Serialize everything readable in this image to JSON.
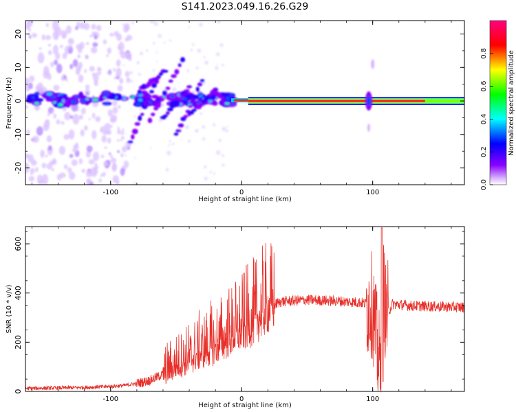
{
  "title": "S141.2023.049.16.26.G29",
  "chart_data": [
    {
      "type": "heatmap",
      "xlabel": "Height of straight line (km)",
      "ylabel": "Frequency (Hz)",
      "xlim": [
        -165,
        170
      ],
      "ylim": [
        -25,
        24
      ],
      "x_ticks": [
        -100,
        0,
        100
      ],
      "y_ticks": [
        -20,
        -10,
        0,
        10,
        20
      ],
      "grid": false,
      "colorbar": {
        "label": "Normalized spectral amplitude",
        "range": [
          0,
          1
        ],
        "ticks": [
          0.0,
          0.2,
          0.4,
          0.6,
          0.8
        ],
        "stops": [
          "#ffffff",
          "#8a00ff",
          "#0000ff",
          "#00ffff",
          "#00ff00",
          "#ffff00",
          "#ff0000",
          "#ff007f"
        ]
      },
      "features": [
        {
          "x_range": [
            -165,
            -95
          ],
          "frequency_hz": 1,
          "amplitude": 0.35
        },
        {
          "x_range": [
            -95,
            -5
          ],
          "frequency_hz": 1,
          "amplitude": 0.45
        },
        {
          "x_range": [
            5,
            170
          ],
          "frequency_hz": 0,
          "amplitude": 0.95
        },
        {
          "x_range": [
            92,
            102
          ],
          "frequency_hz": 0,
          "amplitude": 0.5
        }
      ]
    },
    {
      "type": "line",
      "xlabel": "Height of straight line (km)",
      "ylabel": "SNR (10 * v/v)",
      "xlim": [
        -165,
        170
      ],
      "ylim": [
        0,
        670
      ],
      "x_ticks": [
        -100,
        0,
        100
      ],
      "y_ticks": [
        0,
        200,
        400,
        600
      ],
      "grid": false,
      "series": [
        {
          "color": "#e8302a",
          "x": [
            -165,
            -140,
            -120,
            -100,
            -90,
            -80,
            -70,
            -60,
            -50,
            -40,
            -30,
            -20,
            -10,
            0,
            10,
            20,
            30,
            50,
            70,
            90,
            100,
            104,
            106,
            108,
            110,
            115,
            130,
            150,
            170
          ],
          "y": [
            12,
            14,
            16,
            20,
            24,
            32,
            45,
            70,
            105,
            130,
            160,
            185,
            220,
            250,
            290,
            340,
            365,
            372,
            368,
            362,
            350,
            150,
            80,
            470,
            300,
            355,
            348,
            345,
            342
          ]
        }
      ]
    }
  ]
}
